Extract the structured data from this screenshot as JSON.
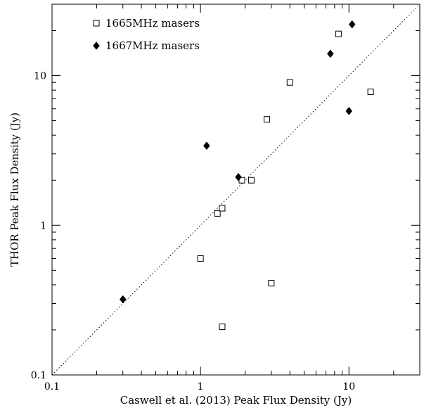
{
  "chart_data": {
    "type": "scatter",
    "title": "",
    "xlabel": "Caswell et al. (2013) Peak Flux Density (Jy)",
    "ylabel": "THOR Peak Flux Density (Jy)",
    "xscale": "log",
    "yscale": "log",
    "xlim": [
      0.1,
      30
    ],
    "ylim": [
      0.1,
      30
    ],
    "x_tick_labels": [
      {
        "value": 0.1,
        "label": "0.1"
      },
      {
        "value": 1,
        "label": "1"
      },
      {
        "value": 10,
        "label": "10"
      }
    ],
    "y_tick_labels": [
      {
        "value": 0.1,
        "label": "0.1"
      },
      {
        "value": 1,
        "label": "1"
      },
      {
        "value": 10,
        "label": "10"
      }
    ],
    "reference_line": {
      "style": "dotted",
      "relation": "y = x"
    },
    "legend_position": "top-left",
    "grid": false,
    "series": [
      {
        "name": "1665MHz masers",
        "marker": "open-square",
        "color": "#000000",
        "points": [
          {
            "x": 1.0,
            "y": 0.6
          },
          {
            "x": 1.3,
            "y": 1.2
          },
          {
            "x": 1.4,
            "y": 1.3
          },
          {
            "x": 1.4,
            "y": 0.21
          },
          {
            "x": 1.9,
            "y": 2.0
          },
          {
            "x": 2.2,
            "y": 2.0
          },
          {
            "x": 2.8,
            "y": 5.1
          },
          {
            "x": 3.0,
            "y": 0.41
          },
          {
            "x": 4.0,
            "y": 9.0
          },
          {
            "x": 8.5,
            "y": 19.0
          },
          {
            "x": 14.0,
            "y": 7.8
          }
        ]
      },
      {
        "name": "1667MHz masers",
        "marker": "filled-diamond",
        "color": "#000000",
        "points": [
          {
            "x": 0.3,
            "y": 0.32
          },
          {
            "x": 1.1,
            "y": 3.4
          },
          {
            "x": 1.8,
            "y": 2.1
          },
          {
            "x": 7.5,
            "y": 14.0
          },
          {
            "x": 10.0,
            "y": 5.8
          },
          {
            "x": 10.5,
            "y": 22.0
          }
        ]
      }
    ]
  }
}
